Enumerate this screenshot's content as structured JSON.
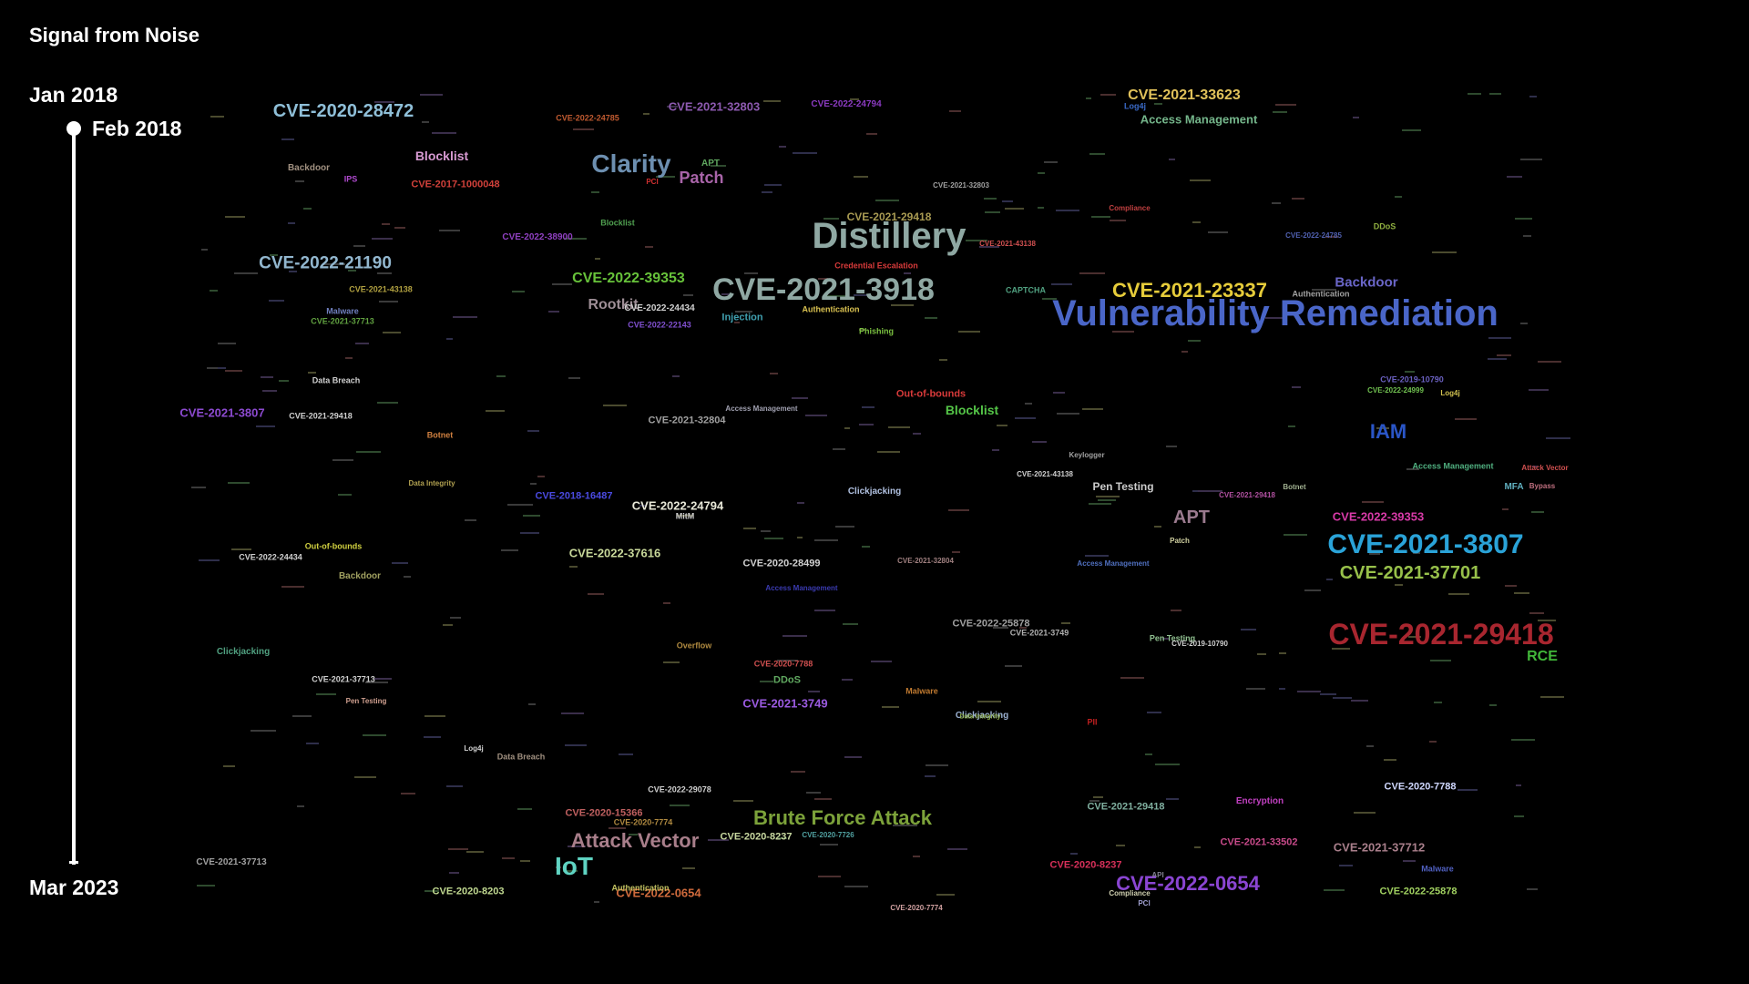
{
  "title": "Signal from Noise",
  "timeline": {
    "start": "Jan 2018",
    "current": "Feb 2018",
    "end": "Mar 2023",
    "progress": 0.0
  },
  "terms": [
    {
      "text": "Vulnerability Remediation",
      "color": "#4a66c8",
      "size": 40
    },
    {
      "text": "Distillery",
      "color": "#8fa8a3",
      "size": 40
    },
    {
      "text": "CVE-2021-3918",
      "color": "#8fa8a3",
      "size": 34
    },
    {
      "text": "CVE-2021-29418",
      "color": "#a8262f",
      "size": 32
    },
    {
      "text": "CVE-2021-3807",
      "color": "#2aa3d8",
      "size": 30
    },
    {
      "text": "Clarity",
      "color": "#6d8fb0",
      "size": 28
    },
    {
      "text": "IoT",
      "color": "#5fd3c2",
      "size": 28
    },
    {
      "text": "Brute Force Attack",
      "color": "#7ca23a",
      "size": 22
    },
    {
      "text": "Attack Vector",
      "color": "#a87e8a",
      "size": 22
    },
    {
      "text": "CVE-2022-0654",
      "color": "#8a45d2",
      "size": 22
    },
    {
      "text": "CVE-2021-23337",
      "color": "#e6cc3a",
      "size": 22
    },
    {
      "text": "IAM",
      "color": "#2a55c6",
      "size": 22
    },
    {
      "text": "CVE-2021-37701",
      "color": "#97c04a",
      "size": 20
    },
    {
      "text": "CVE-2020-28472",
      "color": "#8fbfd8",
      "size": 20
    },
    {
      "text": "CVE-2022-21190",
      "color": "#92b7cf",
      "size": 19
    },
    {
      "text": "APT",
      "color": "#9a7a8e",
      "size": 20
    },
    {
      "text": "Patch",
      "color": "#a864a8",
      "size": 18
    },
    {
      "text": "CVE-2022-39353",
      "color": "#67c23a",
      "size": 16
    },
    {
      "text": "Rootkit",
      "color": "#9e8e96",
      "size": 16
    },
    {
      "text": "CVE-2021-33623",
      "color": "#e0c15a",
      "size": 16
    },
    {
      "text": "Access Management",
      "color": "#74b58a",
      "size": 13
    },
    {
      "text": "Backdoor",
      "color": "#6a66c8",
      "size": 15
    },
    {
      "text": "RCE",
      "color": "#42b83a",
      "size": 16
    },
    {
      "text": "Blocklist",
      "color": "#d79ad2",
      "size": 14
    },
    {
      "text": "Blocklist",
      "color": "#54c447",
      "size": 14
    },
    {
      "text": "CVE-2021-3807",
      "color": "#8c4ad0",
      "size": 13
    },
    {
      "text": "CVE-2022-24794",
      "color": "#e8e8d8",
      "size": 13
    },
    {
      "text": "CVE-2022-37616",
      "color": "#c8d89a",
      "size": 13
    },
    {
      "text": "CVE-2021-3749",
      "color": "#9a5ae0",
      "size": 13
    },
    {
      "text": "CVE-2022-39353",
      "color": "#d83aa8",
      "size": 13
    },
    {
      "text": "CVE-2021-37712",
      "color": "#a87e8a",
      "size": 13
    },
    {
      "text": "CVE-2022-0654",
      "color": "#cf6a3c",
      "size": 13
    },
    {
      "text": "CVE-2021-32803",
      "color": "#8d5ab0",
      "size": 13
    },
    {
      "text": "Pen Testing",
      "color": "#cccccc",
      "size": 12
    },
    {
      "text": "Injection",
      "color": "#40a0b0",
      "size": 11
    },
    {
      "text": "CVE-2021-29418",
      "color": "#a89a52",
      "size": 12
    },
    {
      "text": "CVE-2018-16487",
      "color": "#4a4ae0",
      "size": 11
    },
    {
      "text": "Out-of-bounds",
      "color": "#d83a3a",
      "size": 11
    },
    {
      "text": "CVE-2021-32804",
      "color": "#a0a0a0",
      "size": 11
    },
    {
      "text": "CVE-2020-28499",
      "color": "#d0d0d0",
      "size": 11
    },
    {
      "text": "CVE-2022-25878",
      "color": "#a0a0a0",
      "size": 11
    },
    {
      "text": "CVE-2021-29418",
      "color": "#80b0a0",
      "size": 11
    },
    {
      "text": "CVE-2021-33502",
      "color": "#c84a8a",
      "size": 11
    },
    {
      "text": "CVE-2020-7788",
      "color": "#d0d8ff",
      "size": 11
    },
    {
      "text": "CVE-2022-25878",
      "color": "#a0d060",
      "size": 11
    },
    {
      "text": "CVE-2020-8237",
      "color": "#c8d8a0",
      "size": 11
    },
    {
      "text": "CVE-2020-8237",
      "color": "#d8305a",
      "size": 11
    },
    {
      "text": "CVE-2020-15366",
      "color": "#c06060",
      "size": 11
    },
    {
      "text": "CVE-2020-8203",
      "color": "#c0d890",
      "size": 11
    },
    {
      "text": "CVE-2021-37713",
      "color": "#a0a0a0",
      "size": 10
    },
    {
      "text": "CVE-2020-7774",
      "color": "#b08a40",
      "size": 9
    },
    {
      "text": "Clickjacking",
      "color": "#9ab0d0",
      "size": 10
    },
    {
      "text": "DDoS",
      "color": "#60a860",
      "size": 11
    },
    {
      "text": "Malware",
      "color": "#c07a30",
      "size": 9
    },
    {
      "text": "Encryption",
      "color": "#c040c0",
      "size": 10
    },
    {
      "text": "Malware",
      "color": "#5060c0",
      "size": 9
    },
    {
      "text": "APT",
      "color": "#60a860",
      "size": 10
    },
    {
      "text": "Credential Escalation",
      "color": "#d83a3a",
      "size": 9
    },
    {
      "text": "Phishing",
      "color": "#7ac040",
      "size": 9
    },
    {
      "text": "CAPTCHA",
      "color": "#50a080",
      "size": 9
    },
    {
      "text": "Authentication",
      "color": "#a0a0a0",
      "size": 9
    },
    {
      "text": "Authentication",
      "color": "#d8c050",
      "size": 9
    },
    {
      "text": "CVE-2022-24434",
      "color": "#d0d0d0",
      "size": 10
    },
    {
      "text": "CVE-2022-22143",
      "color": "#8050d0",
      "size": 9
    },
    {
      "text": "Blocklist",
      "color": "#50a050",
      "size": 9
    },
    {
      "text": "CVE-2022-38900",
      "color": "#8f40c0",
      "size": 10
    },
    {
      "text": "CVE-2022-24785",
      "color": "#c05a30",
      "size": 9
    },
    {
      "text": "CVE-2022-24794",
      "color": "#8a3ac0",
      "size": 10
    },
    {
      "text": "Backdoor",
      "color": "#a09080",
      "size": 10
    },
    {
      "text": "IPS",
      "color": "#b04ad0",
      "size": 9
    },
    {
      "text": "CVE-2017-1000048",
      "color": "#d0403a",
      "size": 11
    },
    {
      "text": "CVE-2021-43138",
      "color": "#b0a040",
      "size": 9
    },
    {
      "text": "Malware",
      "color": "#7080c0",
      "size": 9
    },
    {
      "text": "CVE-2021-37713",
      "color": "#60a040",
      "size": 9
    },
    {
      "text": "Data Breach",
      "color": "#d0d0d0",
      "size": 9
    },
    {
      "text": "CVE-2021-29418",
      "color": "#d0d0d0",
      "size": 9
    },
    {
      "text": "Botnet",
      "color": "#d08040",
      "size": 9
    },
    {
      "text": "Data Integrity",
      "color": "#b0a050",
      "size": 8
    },
    {
      "text": "CVE-2022-24434",
      "color": "#d0d0d0",
      "size": 9
    },
    {
      "text": "Out-of-bounds",
      "color": "#d0d040",
      "size": 9
    },
    {
      "text": "Backdoor",
      "color": "#a0a060",
      "size": 10
    },
    {
      "text": "Clickjacking",
      "color": "#50a080",
      "size": 10
    },
    {
      "text": "CVE-2021-37713",
      "color": "#d0d0d0",
      "size": 9
    },
    {
      "text": "Pen Testing",
      "color": "#d0a090",
      "size": 8
    },
    {
      "text": "Log4j",
      "color": "#d0d0d0",
      "size": 8
    },
    {
      "text": "Data Breach",
      "color": "#a09080",
      "size": 9
    },
    {
      "text": "CVE-2022-29078",
      "color": "#d0d0d0",
      "size": 9
    },
    {
      "text": "MitM",
      "color": "#d0d0d0",
      "size": 9
    },
    {
      "text": "Access Management",
      "color": "#a0a0b0",
      "size": 8
    },
    {
      "text": "CVE-2021-32804",
      "color": "#a08080",
      "size": 8
    },
    {
      "text": "Access Management",
      "color": "#3a3ab0",
      "size": 8
    },
    {
      "text": "Overflow",
      "color": "#b08a40",
      "size": 9
    },
    {
      "text": "CVE-2020-7788",
      "color": "#d05050",
      "size": 9
    },
    {
      "text": "CVE-2021-3749",
      "color": "#b0b0b0",
      "size": 9
    },
    {
      "text": "Pen Testing",
      "color": "#90c090",
      "size": 9
    },
    {
      "text": "CVE-2019-10790",
      "color": "#d0d0d0",
      "size": 8
    },
    {
      "text": "Patch",
      "color": "#d0d0a0",
      "size": 8
    },
    {
      "text": "Access Management",
      "color": "#5070c0",
      "size": 8
    },
    {
      "text": "CVE-2021-43138",
      "color": "#d0d0d0",
      "size": 8
    },
    {
      "text": "CVE-2021-29418",
      "color": "#b050a0",
      "size": 8
    },
    {
      "text": "Keylogger",
      "color": "#a0a0a0",
      "size": 8
    },
    {
      "text": "Botnet",
      "color": "#a0b090",
      "size": 8
    },
    {
      "text": "CVE-2019-10790",
      "color": "#6a60c0",
      "size": 9
    },
    {
      "text": "CVE-2022-24999",
      "color": "#70c050",
      "size": 8
    },
    {
      "text": "Log4j",
      "color": "#d0c050",
      "size": 8
    },
    {
      "text": "Access Management",
      "color": "#50b080",
      "size": 9
    },
    {
      "text": "MFA",
      "color": "#60b0c0",
      "size": 10
    },
    {
      "text": "Bypass",
      "color": "#c07080",
      "size": 8
    },
    {
      "text": "Attack Vector",
      "color": "#d05050",
      "size": 8
    },
    {
      "text": "Log4j",
      "color": "#3a6ac8",
      "size": 9
    },
    {
      "text": "Compliance",
      "color": "#c04040",
      "size": 8
    },
    {
      "text": "CVE-2022-24785",
      "color": "#5060b0",
      "size": 8
    },
    {
      "text": "DDoS",
      "color": "#90b040",
      "size": 9
    },
    {
      "text": "CVE-2021-32803",
      "color": "#a0a0a0",
      "size": 8
    },
    {
      "text": "CVE-2021-43138",
      "color": "#d05050",
      "size": 8
    },
    {
      "text": "PCI",
      "color": "#d03030",
      "size": 8
    },
    {
      "text": "API",
      "color": "#808090",
      "size": 8
    },
    {
      "text": "Compliance",
      "color": "#d0d0b0",
      "size": 8
    },
    {
      "text": "PCI",
      "color": "#a0a0d0",
      "size": 8
    },
    {
      "text": "CVE-2020-7726",
      "color": "#50a0a0",
      "size": 8
    },
    {
      "text": "Authentication",
      "color": "#c0c060",
      "size": 9
    },
    {
      "text": "CVE-2020-7774",
      "color": "#d0a0a0",
      "size": 8
    },
    {
      "text": "PII",
      "color": "#c02020",
      "size": 9
    },
    {
      "text": "Data Integrity",
      "color": "#90b050",
      "size": 7
    },
    {
      "text": "Clickjacking",
      "color": "#b0c0e0",
      "size": 10
    }
  ]
}
